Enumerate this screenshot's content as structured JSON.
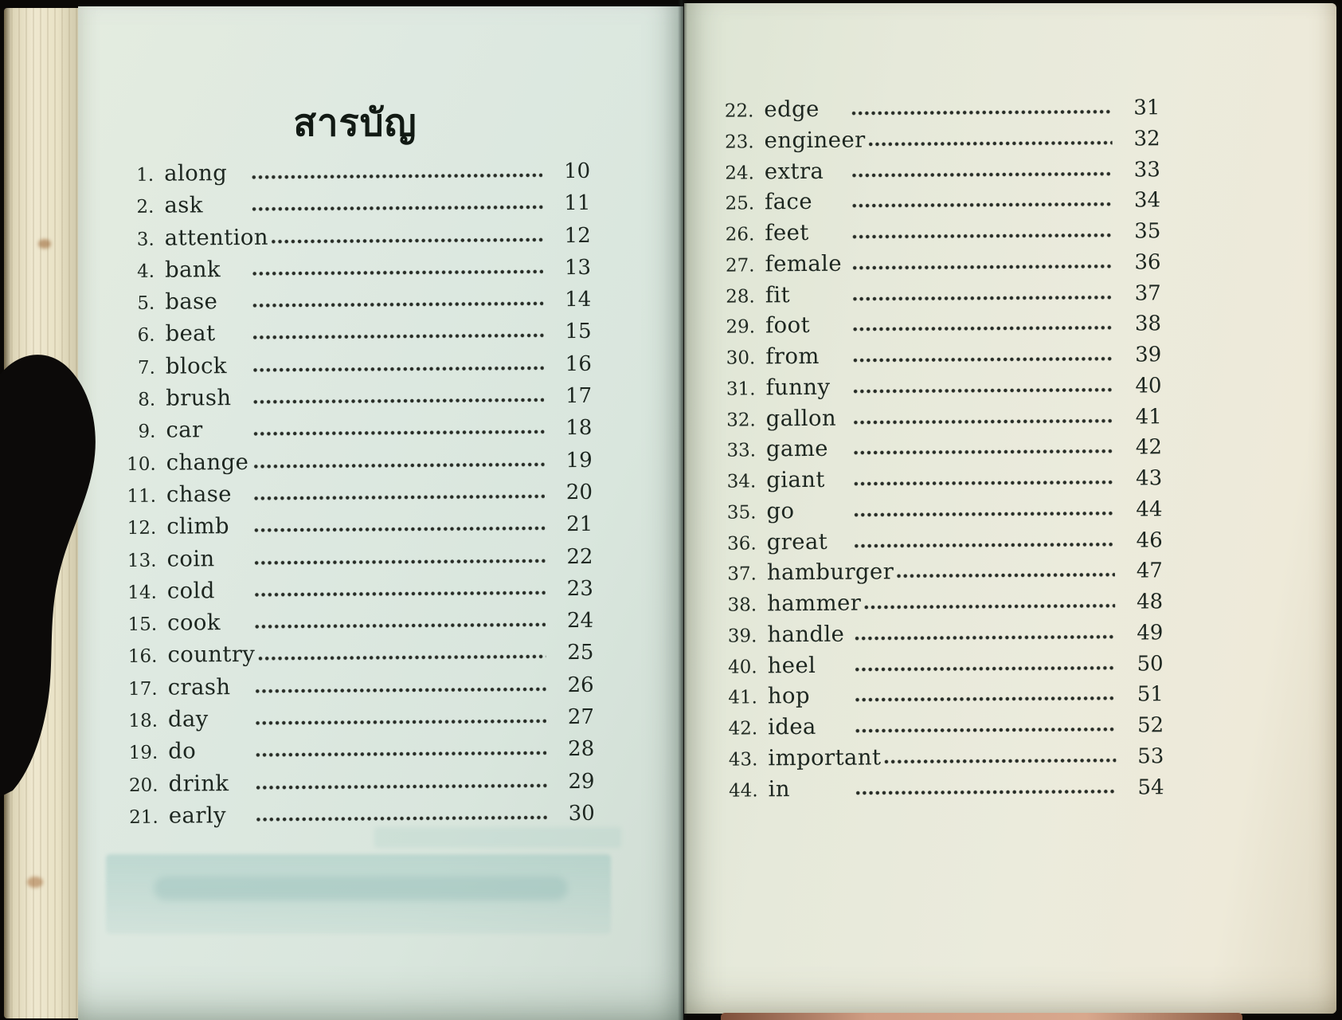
{
  "book": {
    "title_thai": "สารบัญ",
    "title_meaning": "Table of Contents"
  },
  "left_page": {
    "title": "สารบัญ",
    "entries": [
      {
        "num": "1.",
        "word": "along",
        "page": "10"
      },
      {
        "num": "2.",
        "word": "ask",
        "page": "11"
      },
      {
        "num": "3.",
        "word": "attention",
        "page": "12"
      },
      {
        "num": "4.",
        "word": "bank",
        "page": "13"
      },
      {
        "num": "5.",
        "word": "base",
        "page": "14"
      },
      {
        "num": "6.",
        "word": "beat",
        "page": "15"
      },
      {
        "num": "7.",
        "word": "block",
        "page": "16"
      },
      {
        "num": "8.",
        "word": "brush",
        "page": "17"
      },
      {
        "num": "9.",
        "word": "car",
        "page": "18"
      },
      {
        "num": "10.",
        "word": "change",
        "page": "19"
      },
      {
        "num": "11.",
        "word": "chase",
        "page": "20"
      },
      {
        "num": "12.",
        "word": "climb",
        "page": "21"
      },
      {
        "num": "13.",
        "word": "coin",
        "page": "22"
      },
      {
        "num": "14.",
        "word": "cold",
        "page": "23"
      },
      {
        "num": "15.",
        "word": "cook",
        "page": "24"
      },
      {
        "num": "16.",
        "word": "country",
        "page": "25"
      },
      {
        "num": "17.",
        "word": "crash",
        "page": "26"
      },
      {
        "num": "18.",
        "word": "day",
        "page": "27"
      },
      {
        "num": "19.",
        "word": "do",
        "page": "28"
      },
      {
        "num": "20.",
        "word": "drink",
        "page": "29"
      },
      {
        "num": "21.",
        "word": "early",
        "page": "30"
      }
    ]
  },
  "right_page": {
    "entries": [
      {
        "num": "22.",
        "word": "edge",
        "page": "31"
      },
      {
        "num": "23.",
        "word": "engineer",
        "page": "32"
      },
      {
        "num": "24.",
        "word": "extra",
        "page": "33"
      },
      {
        "num": "25.",
        "word": "face",
        "page": "34"
      },
      {
        "num": "26.",
        "word": "feet",
        "page": "35"
      },
      {
        "num": "27.",
        "word": "female",
        "page": "36"
      },
      {
        "num": "28.",
        "word": "fit",
        "page": "37"
      },
      {
        "num": "29.",
        "word": "foot",
        "page": "38"
      },
      {
        "num": "30.",
        "word": "from",
        "page": "39"
      },
      {
        "num": "31.",
        "word": "funny",
        "page": "40"
      },
      {
        "num": "32.",
        "word": "gallon",
        "page": "41"
      },
      {
        "num": "33.",
        "word": "game",
        "page": "42"
      },
      {
        "num": "34.",
        "word": "giant",
        "page": "43"
      },
      {
        "num": "35.",
        "word": "go",
        "page": "44"
      },
      {
        "num": "36.",
        "word": "great",
        "page": "46"
      },
      {
        "num": "37.",
        "word": "hamburger",
        "page": "47"
      },
      {
        "num": "38.",
        "word": "hammer",
        "page": "48"
      },
      {
        "num": "39.",
        "word": "handle",
        "page": "49"
      },
      {
        "num": "40.",
        "word": "heel",
        "page": "50"
      },
      {
        "num": "41.",
        "word": "hop",
        "page": "51"
      },
      {
        "num": "42.",
        "word": "idea",
        "page": "52"
      },
      {
        "num": "43.",
        "word": "important",
        "page": "53"
      },
      {
        "num": "44.",
        "word": "in",
        "page": "54"
      }
    ]
  },
  "colors": {
    "left_page_bg": "#dde8e0",
    "right_page_bg": "#ebebdc",
    "ink": "#1d2620",
    "surround": "#0a0806",
    "page_edge_cream": "#e9e2c6",
    "showthrough_teal": "#82b9b4"
  }
}
